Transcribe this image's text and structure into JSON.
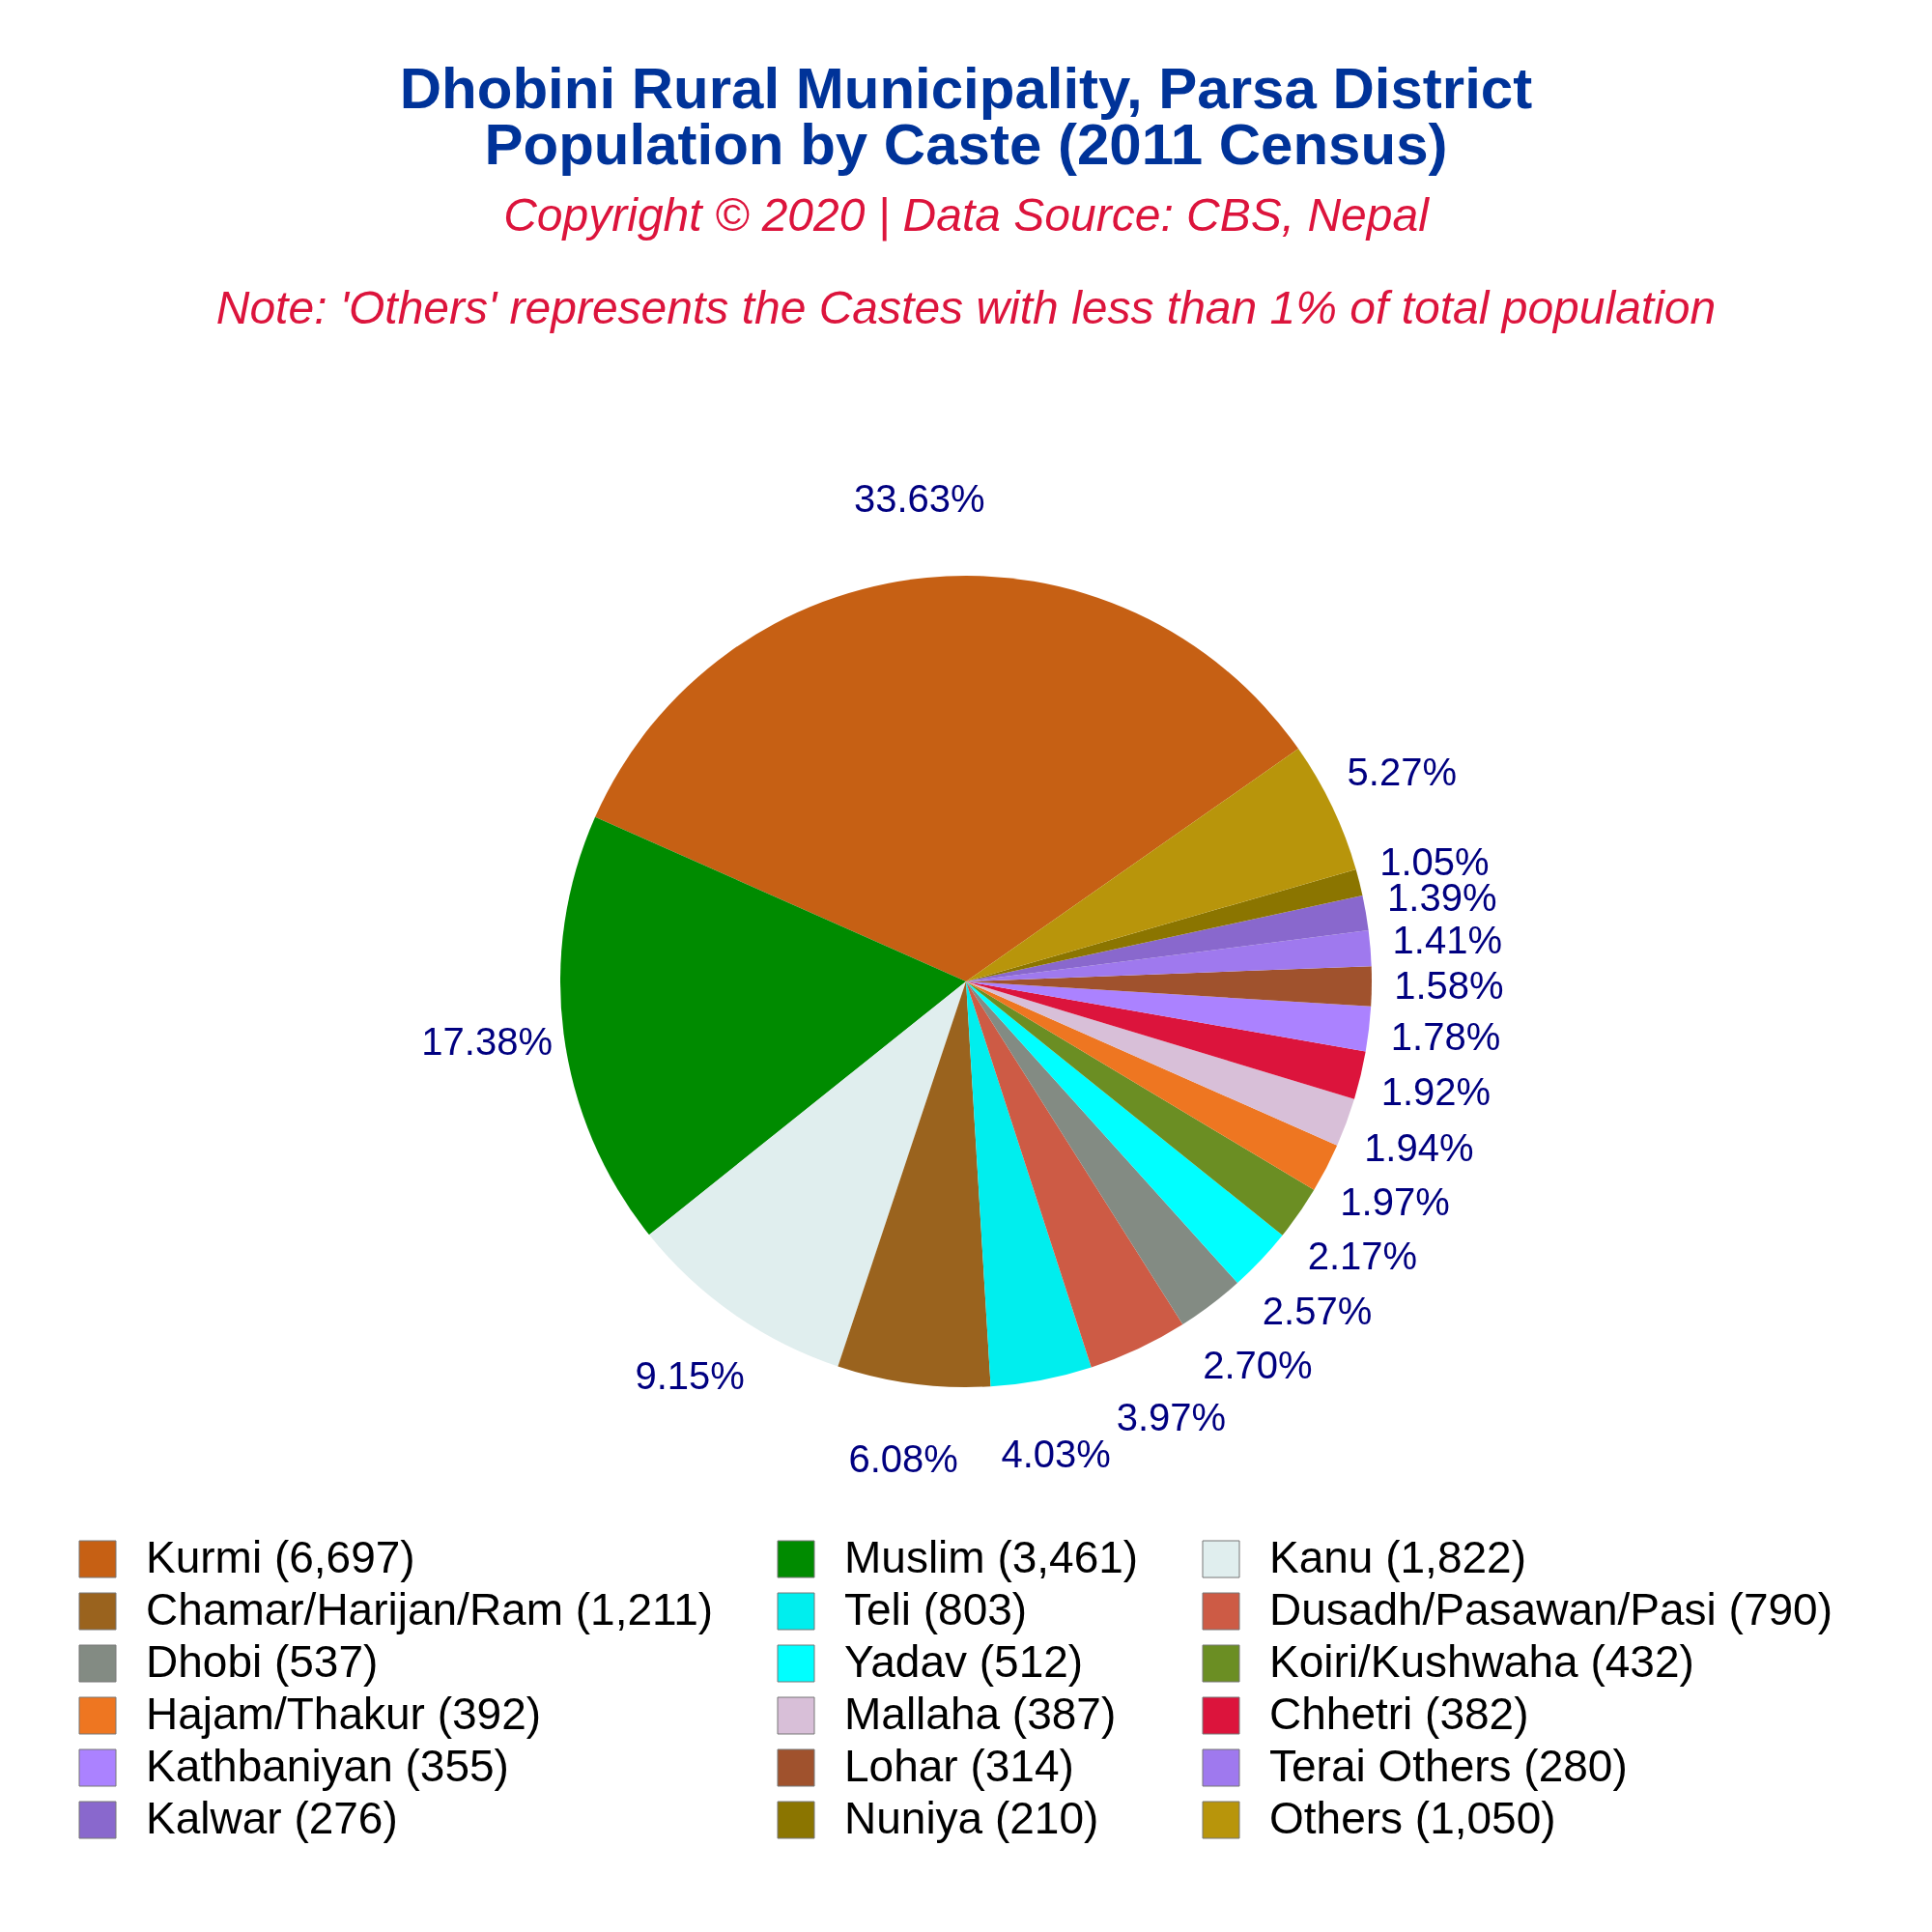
{
  "chart_data": {
    "type": "pie",
    "title": "Dhobini Rural Municipality, Parsa District\nPopulation by Caste (2011 Census)",
    "subtitle": "Copyright © 2020 | Data Source: CBS, Nepal",
    "annotations": [
      "Note: 'Others' represents the Castes with less than 1% of total population"
    ],
    "categories": [
      "Kurmi (6,697)",
      "Muslim (3,461)",
      "Kanu (1,822)",
      "Chamar/Harijan/Ram (1,211)",
      "Teli (803)",
      "Dusadh/Pasawan/Pasi (790)",
      "Dhobi (537)",
      "Yadav (512)",
      "Koiri/Kushwaha (432)",
      "Hajam/Thakur (392)",
      "Mallaha (387)",
      "Chhetri (382)",
      "Kathbaniyan (355)",
      "Lohar (314)",
      "Terai Others (280)",
      "Kalwar (276)",
      "Nuniya (210)",
      "Others (1,050)"
    ],
    "values": [
      33.63,
      17.38,
      9.15,
      6.08,
      4.03,
      3.97,
      2.7,
      2.57,
      2.17,
      1.97,
      1.94,
      1.92,
      1.78,
      1.58,
      1.41,
      1.39,
      1.05,
      5.27
    ],
    "value_labels": [
      "33.63%",
      "17.38%",
      "9.15%",
      "6.08%",
      "4.03%",
      "3.97%",
      "2.70%",
      "2.57%",
      "2.17%",
      "1.97%",
      "1.94%",
      "1.92%",
      "1.78%",
      "1.58%",
      "1.41%",
      "1.39%",
      "1.05%",
      "5.27%"
    ],
    "colors": [
      "#c66014",
      "#008b00",
      "#e0eeee",
      "#9a631e",
      "#00eeee",
      "#cd5b45",
      "#838b83",
      "#00ffff",
      "#6b8e23",
      "#ee7621",
      "#d8bfd8",
      "#dc143c",
      "#ab82ff",
      "#a0522d",
      "#9f79ee",
      "#8968cd",
      "#8b7500",
      "#b8950b"
    ],
    "legend": "bottom"
  }
}
